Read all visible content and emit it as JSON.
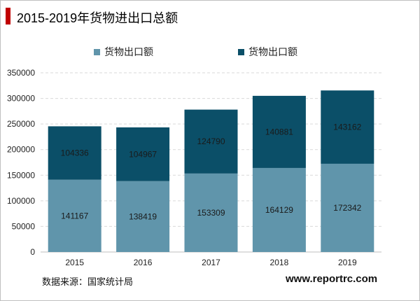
{
  "header": {
    "title": "2015-2019年货物进出口总额"
  },
  "footer": {
    "source": "数据来源：国家统计局",
    "site": "www.reportrc.com"
  },
  "colors": {
    "accent": "#c00000",
    "bottom": "#6095ab",
    "top": "#0b4f68",
    "grid": "#d9d9d9"
  },
  "chart_data": {
    "type": "bar",
    "stacked": true,
    "categories": [
      "2015",
      "2016",
      "2017",
      "2018",
      "2019"
    ],
    "series": [
      {
        "name": "货物出口额",
        "values": [
          141167,
          138419,
          153309,
          164129,
          172342
        ],
        "color": "#6095ab"
      },
      {
        "name": "货物出口额",
        "values": [
          104336,
          104967,
          124790,
          140881,
          143162
        ],
        "color": "#0b4f68"
      }
    ],
    "ylim": [
      0,
      350000
    ],
    "yticks": [
      0,
      50000,
      100000,
      150000,
      200000,
      250000,
      300000,
      350000
    ],
    "title": "2015-2019年货物进出口总额",
    "xlabel": "",
    "ylabel": "",
    "grid": true,
    "legend": "top-center"
  }
}
